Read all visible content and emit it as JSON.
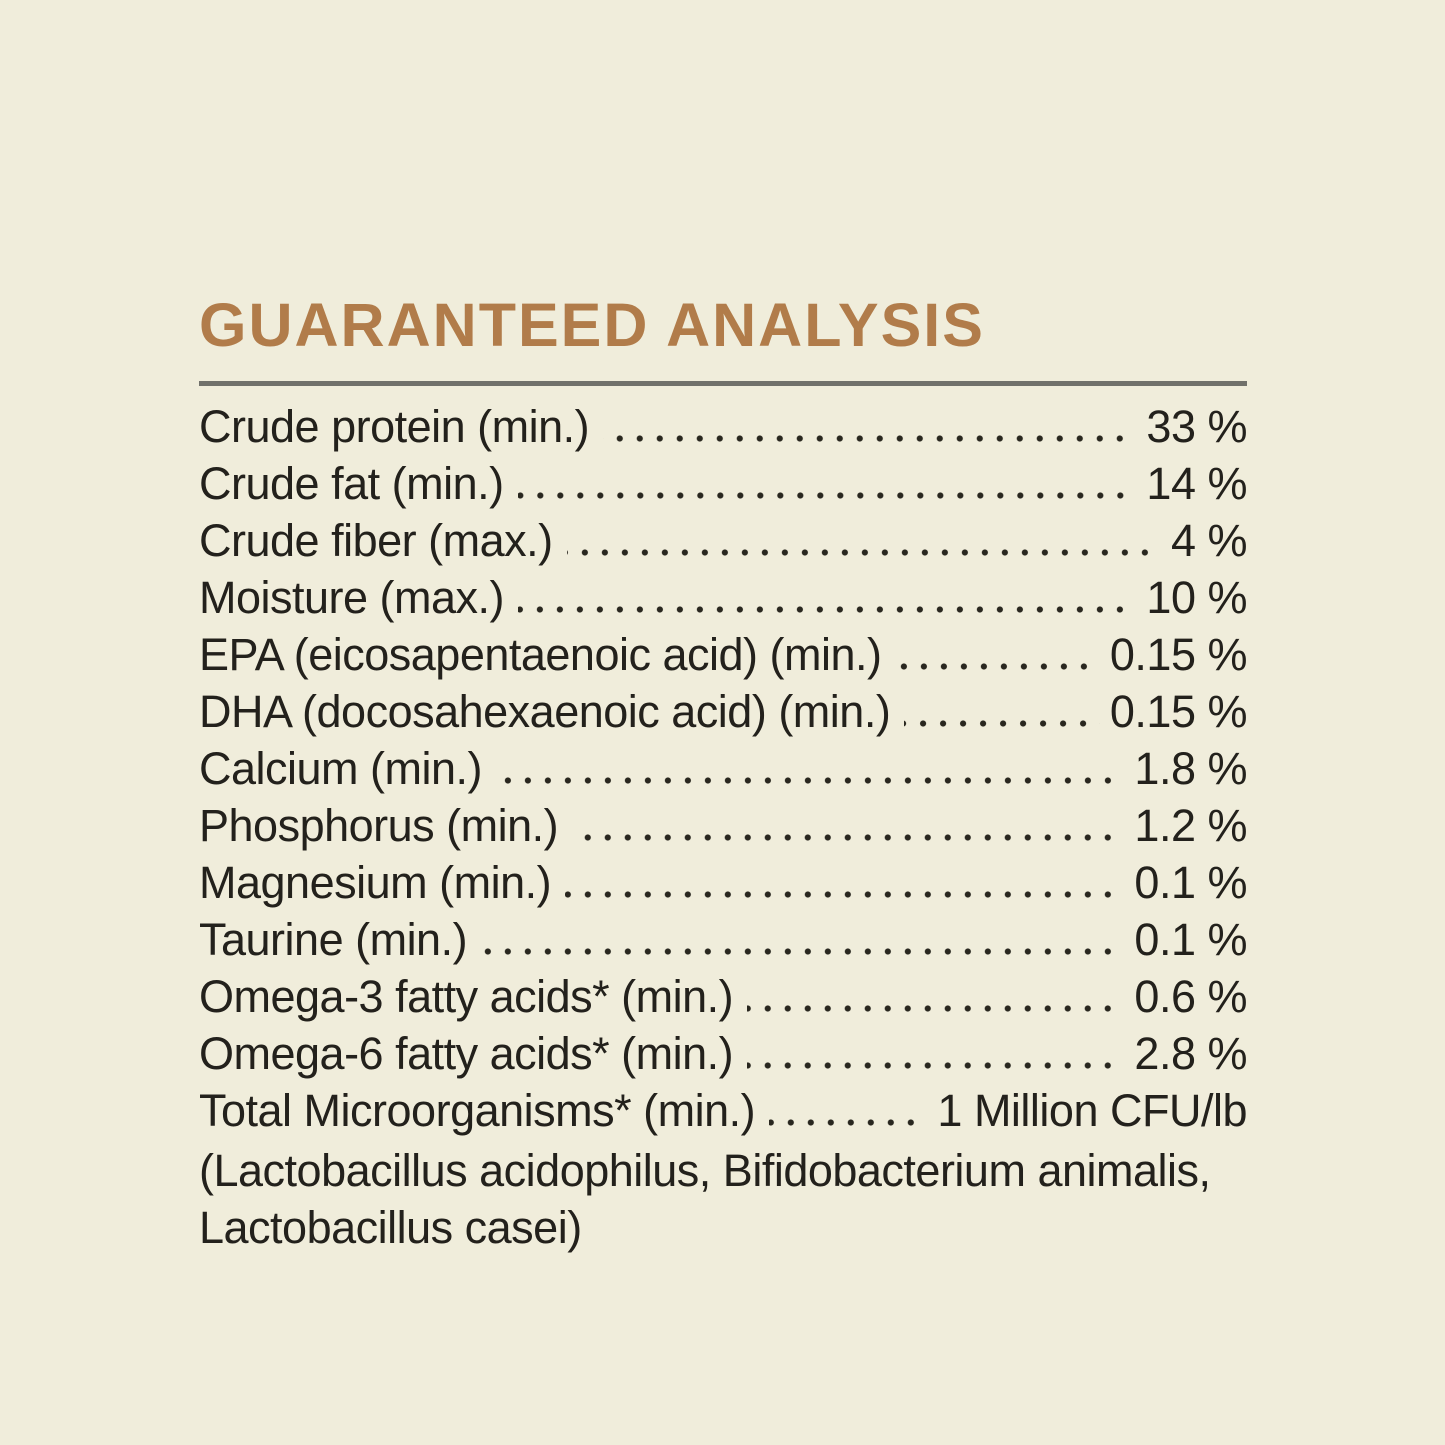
{
  "page": {
    "background_color": "#f0eddb",
    "accent_color": "#b17c4a",
    "text_color": "#23211c",
    "rule_color": "#71716b"
  },
  "title": "GUARANTEED ANALYSIS",
  "analysis": {
    "rows": [
      {
        "label": "Crude protein (min.)",
        "value": "33 %"
      },
      {
        "label": "Crude fat (min.)",
        "value": "14 %"
      },
      {
        "label": "Crude fiber (max.)",
        "value": "4 %"
      },
      {
        "label": "Moisture (max.)",
        "value": "10 %"
      },
      {
        "label": "EPA (eicosapentaenoic acid) (min.)",
        "value": "0.15 %"
      },
      {
        "label": "DHA (docosahexaenoic acid) (min.)",
        "value": "0.15 %"
      },
      {
        "label": "Calcium (min.)",
        "value": "1.8 %"
      },
      {
        "label": "Phosphorus (min.)",
        "value": "1.2 %"
      },
      {
        "label": "Magnesium (min.)",
        "value": "0.1 %"
      },
      {
        "label": "Taurine (min.)",
        "value": "0.1 %"
      },
      {
        "label": "Omega-3 fatty acids* (min.)",
        "value": "0.6 %"
      },
      {
        "label": "Omega-6 fatty acids* (min.)",
        "value": "2.8 %"
      },
      {
        "label": "Total Microorganisms* (min.)",
        "value": "1 Million CFU/lb"
      }
    ],
    "footnote_lines": [
      "(Lactobacillus acidophilus, Bifidobacterium animalis,",
      "Lactobacillus casei)"
    ]
  }
}
